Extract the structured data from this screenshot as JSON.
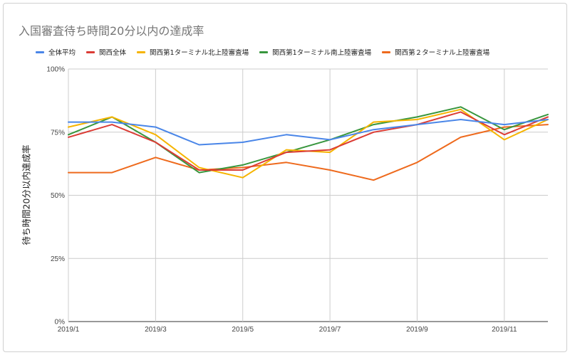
{
  "chart_data": {
    "type": "line",
    "title": "入国審査待ち時間20分以内の達成率",
    "ylabel": "待ち時間20分以内達成率",
    "xlabel": "",
    "x_ticks": [
      "2019/1",
      "2019/3",
      "2019/5",
      "2019/7",
      "2019/9",
      "2019/11"
    ],
    "y_ticks": [
      "100%",
      "75%",
      "50%",
      "25%",
      "0%"
    ],
    "ylim": [
      0,
      100
    ],
    "grid": true,
    "legend_position": "top",
    "categories": [
      "2019/1",
      "2019/2",
      "2019/3",
      "2019/4",
      "2019/5",
      "2019/6",
      "2019/7",
      "2019/8",
      "2019/9",
      "2019/10",
      "2019/11",
      "2019/12"
    ],
    "series": [
      {
        "name": "全体平均",
        "color": "#4a86e8",
        "values": [
          79,
          79,
          77,
          70,
          71,
          74,
          72,
          76,
          78,
          80,
          78,
          80
        ]
      },
      {
        "name": "関西全体",
        "color": "#db3c35",
        "values": [
          73,
          78,
          71,
          60,
          60,
          67,
          68,
          75,
          78,
          83,
          74,
          81
        ]
      },
      {
        "name": "関西第1ターミナル北上陸審査場",
        "color": "#f6b400",
        "values": [
          77,
          81,
          74,
          61,
          57,
          68,
          67,
          79,
          80,
          84,
          72,
          80
        ]
      },
      {
        "name": "関西第1ターミナル南上陸審査場",
        "color": "#38963d",
        "values": [
          74,
          81,
          71,
          59,
          62,
          67,
          72,
          78,
          81,
          85,
          76,
          82
        ]
      },
      {
        "name": "関西第２ターミナル上陸審査場",
        "color": "#ee6a1d",
        "values": [
          59,
          59,
          65,
          60,
          61,
          63,
          60,
          56,
          63,
          73,
          77,
          78
        ]
      }
    ]
  }
}
